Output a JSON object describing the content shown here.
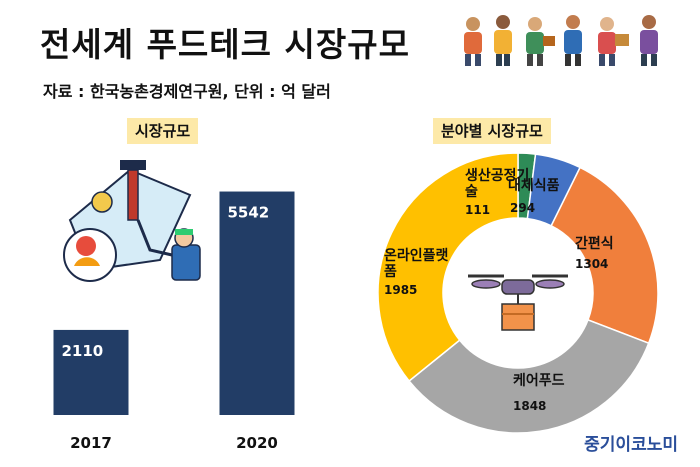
{
  "header": {
    "title": "전세계 푸드테크 시장규모",
    "source": "자료 : 한국농촌경제연구원, 단위 : 억 달러"
  },
  "chart_data": [
    {
      "type": "bar",
      "title": "시장규모",
      "categories": [
        "2017",
        "2020"
      ],
      "values": [
        2110,
        5542
      ],
      "colors": [
        "#223d66",
        "#223d66"
      ],
      "ylim": [
        0,
        6200
      ],
      "grid": false,
      "legend": "none"
    },
    {
      "type": "pie",
      "title": "분야별 시장규모",
      "labels": [
        "생산공정기술",
        "대체식품",
        "간편식",
        "케어푸드",
        "온라인플랫폼"
      ],
      "values": [
        111,
        294,
        1304,
        1848,
        1985
      ],
      "colors": [
        "#2e8b57",
        "#4472c4",
        "#f07f3c",
        "#a6a6a6",
        "#ffc000"
      ],
      "label_lines": [
        [
          "생산공정기",
          "술"
        ],
        [
          "대체식품"
        ],
        [
          "간편식"
        ],
        [
          "케어푸드"
        ],
        [
          "온라인플랫",
          "폼"
        ]
      ],
      "donut": true,
      "legend": "none"
    }
  ],
  "footer": {
    "brand": "중기이코노미"
  }
}
